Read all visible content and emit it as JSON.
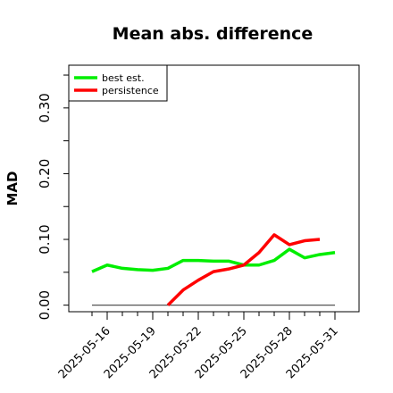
{
  "chart_data": {
    "type": "line",
    "title": "Mean abs. difference",
    "ylabel": "MAD",
    "xlabel": "",
    "ylim": [
      -0.01,
      0.365
    ],
    "y_ticks": [
      0.0,
      0.1,
      0.2,
      0.3
    ],
    "y_tick_labels": [
      "0.00",
      "0.10",
      "0.20",
      "0.30"
    ],
    "x": [
      "2025-05-15",
      "2025-05-16",
      "2025-05-17",
      "2025-05-18",
      "2025-05-19",
      "2025-05-20",
      "2025-05-21",
      "2025-05-22",
      "2025-05-23",
      "2025-05-24",
      "2025-05-25",
      "2025-05-26",
      "2025-05-27",
      "2025-05-28",
      "2025-05-29",
      "2025-05-30",
      "2025-05-31"
    ],
    "x_tick_labels": [
      "2025-05-16",
      "2025-05-19",
      "2025-05-22",
      "2025-05-25",
      "2025-05-28",
      "2025-05-31"
    ],
    "grid": false,
    "legend": "top-left",
    "series": [
      {
        "name": "best est.",
        "color": "#00ee00",
        "values": [
          0.051,
          0.061,
          0.056,
          0.054,
          0.053,
          0.056,
          0.068,
          0.068,
          0.067,
          0.067,
          0.061,
          0.061,
          0.068,
          0.085,
          0.072,
          0.077,
          0.08
        ]
      },
      {
        "name": "persistence",
        "color": "#ff0000",
        "values": [
          null,
          null,
          null,
          null,
          null,
          0.0,
          0.023,
          0.038,
          0.051,
          0.055,
          0.061,
          0.08,
          0.107,
          0.092,
          0.098,
          0.1,
          null
        ]
      }
    ],
    "reference_line": {
      "value": 0.0,
      "color": "#555555"
    }
  }
}
